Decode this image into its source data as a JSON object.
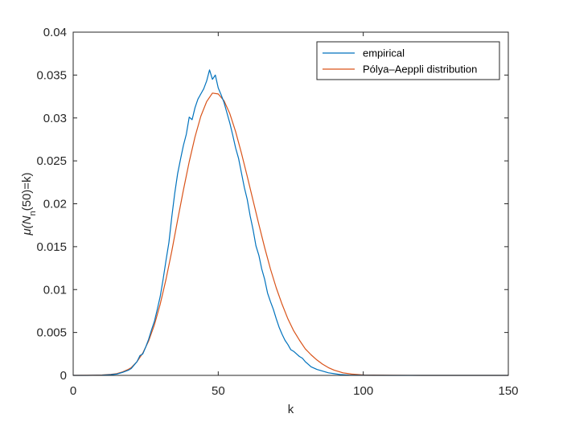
{
  "chart_data": {
    "type": "line",
    "title": "",
    "xlabel": "k",
    "ylabel": {
      "base": "μ(N",
      "sub1": "n",
      "mid": "(50)=k)"
    },
    "xlim": [
      0,
      150
    ],
    "ylim": [
      0,
      0.04
    ],
    "xticks": [
      0,
      50,
      100,
      150
    ],
    "xtick_labels": [
      "0",
      "50",
      "100",
      "150"
    ],
    "yticks": [
      0,
      0.005,
      0.01,
      0.015,
      0.02,
      0.025,
      0.03,
      0.035,
      0.04
    ],
    "ytick_labels": [
      "0",
      "0.005",
      "0.01",
      "0.015",
      "0.02",
      "0.025",
      "0.03",
      "0.035",
      "0.04"
    ],
    "grid": false,
    "legend_position": "top-right",
    "series": [
      {
        "name": "empirical",
        "color": "#0072bd",
        "x": [
          0,
          5,
          10,
          13,
          15,
          17,
          19,
          20,
          21,
          22,
          23,
          24,
          25,
          26,
          27,
          28,
          29,
          30,
          31,
          32,
          33,
          34,
          35,
          36,
          37,
          38,
          39,
          40,
          41,
          42,
          43,
          44,
          45,
          46,
          47,
          48,
          49,
          50,
          51,
          52,
          53,
          54,
          55,
          56,
          57,
          58,
          59,
          60,
          61,
          62,
          63,
          64,
          65,
          66,
          67,
          68,
          69,
          70,
          71,
          72,
          73,
          74,
          75,
          76,
          77,
          78,
          79,
          80,
          82,
          84,
          86,
          88,
          90,
          92,
          95,
          100,
          110,
          120,
          130,
          150
        ],
        "y": [
          0,
          0,
          3e-05,
          8e-05,
          0.00015,
          0.00035,
          0.0006,
          0.0008,
          0.0012,
          0.0016,
          0.0023,
          0.0025,
          0.0033,
          0.0042,
          0.0053,
          0.0063,
          0.0077,
          0.0092,
          0.0112,
          0.0134,
          0.0155,
          0.0185,
          0.0212,
          0.0235,
          0.0252,
          0.0268,
          0.0281,
          0.0301,
          0.0298,
          0.0312,
          0.0322,
          0.0328,
          0.0334,
          0.0343,
          0.0356,
          0.0345,
          0.035,
          0.0335,
          0.0327,
          0.0318,
          0.0306,
          0.0294,
          0.028,
          0.0265,
          0.0253,
          0.0236,
          0.0219,
          0.0205,
          0.0186,
          0.017,
          0.0151,
          0.014,
          0.0124,
          0.0112,
          0.0096,
          0.0086,
          0.0077,
          0.0066,
          0.0056,
          0.0048,
          0.0041,
          0.0036,
          0.003,
          0.0028,
          0.0025,
          0.0022,
          0.002,
          0.0016,
          0.001,
          0.0007,
          0.0005,
          0.0003,
          0.0002,
          0.0001,
          4e-05,
          1e-05,
          0,
          0,
          0,
          0
        ]
      },
      {
        "name": "Pólya–Aeppli distribution",
        "color": "#d95319",
        "x": [
          0,
          5,
          10,
          13,
          15,
          17,
          19,
          20,
          22,
          24,
          26,
          28,
          30,
          32,
          34,
          36,
          38,
          40,
          42,
          44,
          46,
          48,
          50,
          52,
          54,
          56,
          58,
          60,
          62,
          64,
          66,
          68,
          70,
          72,
          74,
          76,
          78,
          80,
          82,
          84,
          86,
          88,
          90,
          93,
          96,
          100,
          110,
          120,
          130,
          150
        ],
        "y": [
          0,
          1e-05,
          5e-05,
          0.00012,
          0.0002,
          0.0004,
          0.0007,
          0.0009,
          0.0016,
          0.0026,
          0.004,
          0.0059,
          0.0083,
          0.0112,
          0.0145,
          0.0181,
          0.0216,
          0.0249,
          0.0278,
          0.0302,
          0.0319,
          0.0329,
          0.0328,
          0.032,
          0.0305,
          0.0284,
          0.0259,
          0.0232,
          0.0204,
          0.0176,
          0.0149,
          0.0124,
          0.0102,
          0.0083,
          0.0066,
          0.0052,
          0.0041,
          0.0031,
          0.0024,
          0.0018,
          0.0013,
          0.0009,
          0.0006,
          0.0003,
          0.00015,
          5e-05,
          1e-05,
          0,
          0,
          0
        ]
      }
    ]
  }
}
